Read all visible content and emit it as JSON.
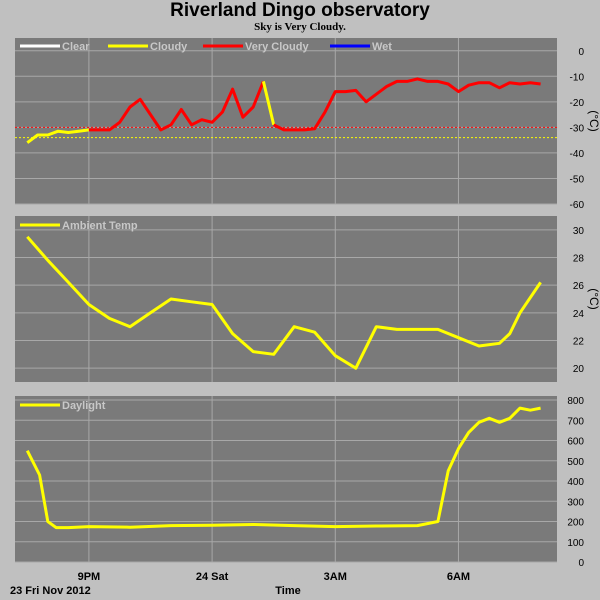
{
  "header": {
    "title": "Riverland Dingo observatory",
    "subtitle": "Sky is Very Cloudy."
  },
  "colors": {
    "background": "#c0c0c0",
    "plot_bg": "#7a7a7a",
    "grid": "#a8a8a8",
    "clear": "#ffffff",
    "cloudy": "#ffff00",
    "very_cloudy": "#ff0000",
    "wet": "#0000ff"
  },
  "x_axis": {
    "date_label": "23 Fri Nov 2012",
    "title": "Time",
    "ticks": [
      "9PM",
      "24 Sat",
      "3AM",
      "6AM"
    ]
  },
  "chart_data": [
    {
      "type": "line",
      "name": "sky",
      "legend": [
        "Clear",
        "Cloudy",
        "Very Cloudy",
        "Wet"
      ],
      "ylim": [
        -60,
        5
      ],
      "yticks": [
        "0",
        "-10",
        "-20",
        "-30",
        "-40",
        "-50",
        "-60"
      ],
      "yunit": "(°C)",
      "thresholds": [
        {
          "value": -30,
          "color": "red"
        },
        {
          "value": -34,
          "color": "yellow"
        }
      ],
      "x_hours": [
        19.5,
        19.75,
        20.0,
        20.25,
        20.5,
        20.75,
        21.0,
        21.25,
        21.5,
        21.75,
        22.0,
        22.25,
        22.5,
        22.75,
        23.0,
        23.25,
        23.5,
        23.75,
        24.0,
        24.25,
        24.5,
        24.75,
        25.0,
        25.25,
        25.5,
        25.75,
        26.0,
        26.25,
        26.5,
        26.75,
        27.0,
        27.25,
        27.5,
        27.75,
        28.0,
        28.25,
        28.5,
        28.75,
        29.0,
        29.25,
        29.5,
        29.75,
        30.0,
        30.25,
        30.5,
        30.75,
        31.0,
        31.25,
        31.5,
        31.75,
        32.0
      ],
      "values": [
        -36,
        -33,
        -33,
        -31.5,
        -32,
        -31.5,
        -31,
        -31,
        -31,
        -28,
        -22,
        -19,
        -25,
        -31,
        -29,
        -23,
        -29,
        -27,
        -28,
        -24,
        -15,
        -26,
        -22,
        -12,
        -29,
        -31,
        -31,
        -31,
        -30.5,
        -24,
        -16,
        -16,
        -15.5,
        -20,
        -17,
        -14,
        -12,
        -12,
        -11,
        -12,
        -12,
        -13,
        -16,
        -13.5,
        -12.5,
        -12.5,
        -14.5,
        -12.5,
        -13,
        -12.5,
        -13
      ],
      "series_by_x": [
        {
          "name": "Cloudy",
          "from": 19.5,
          "to": 21.0
        },
        {
          "name": "Very Cloudy",
          "from": 21.0,
          "to": 25.25
        },
        {
          "name": "Cloudy",
          "from": 25.25,
          "to": 25.5
        },
        {
          "name": "Very Cloudy",
          "from": 25.5,
          "to": 32.0
        }
      ]
    },
    {
      "type": "line",
      "name": "temperature",
      "legend": [
        "Ambient Temp"
      ],
      "ylim": [
        19,
        31
      ],
      "yticks": [
        "30",
        "28",
        "26",
        "24",
        "22",
        "20"
      ],
      "yunit": "(°C)",
      "series": [
        {
          "name": "Ambient Temp",
          "x_hours": [
            19.5,
            20.0,
            20.5,
            21.0,
            21.5,
            22.0,
            22.5,
            23.0,
            23.5,
            24.0,
            24.5,
            25.0,
            25.5,
            26.0,
            26.5,
            27.0,
            27.5,
            28.0,
            28.5,
            29.0,
            29.5,
            30.0,
            30.5,
            31.0,
            31.25,
            31.5,
            32.0
          ],
          "values": [
            29.5,
            27.8,
            26.2,
            24.6,
            23.6,
            23.0,
            24.0,
            25.0,
            24.8,
            24.6,
            22.5,
            21.2,
            21.0,
            23.0,
            22.6,
            20.9,
            20.0,
            23.0,
            22.8,
            22.8,
            22.8,
            22.2,
            21.6,
            21.8,
            22.5,
            24.0,
            26.2
          ]
        }
      ]
    },
    {
      "type": "line",
      "name": "daylight",
      "legend": [
        "Daylight"
      ],
      "ylim": [
        0,
        820
      ],
      "yticks": [
        "800",
        "700",
        "600",
        "500",
        "400",
        "300",
        "200",
        "100",
        "0"
      ],
      "series": [
        {
          "name": "Daylight",
          "x_hours": [
            19.5,
            19.8,
            20.0,
            20.2,
            20.5,
            21.0,
            22.0,
            23.0,
            24.0,
            25.0,
            26.0,
            27.0,
            28.0,
            29.0,
            29.5,
            29.75,
            30.0,
            30.25,
            30.5,
            30.75,
            31.0,
            31.25,
            31.5,
            31.75,
            32.0
          ],
          "values": [
            550,
            430,
            200,
            170,
            170,
            175,
            172,
            180,
            182,
            185,
            180,
            175,
            178,
            180,
            200,
            450,
            560,
            640,
            690,
            710,
            690,
            710,
            760,
            750,
            760
          ]
        }
      ]
    }
  ]
}
